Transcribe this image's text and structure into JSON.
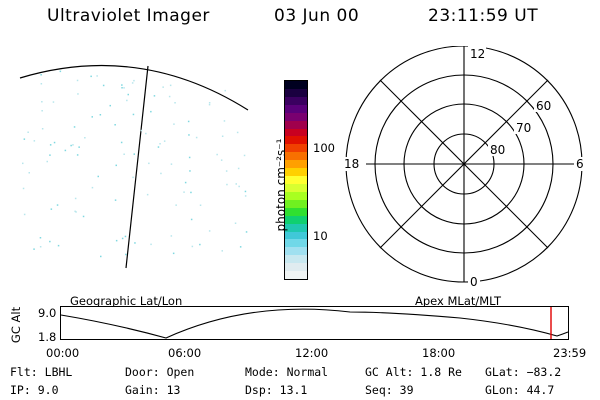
{
  "header": {
    "instrument": "Ultraviolet Imager",
    "date": "03 Jun 00",
    "time": "23:11:59 UT"
  },
  "colorbar": {
    "label": "photon cm⁻²s⁻¹",
    "tick_labels": [
      "100",
      "10"
    ],
    "colors": [
      "#000020",
      "#1a0040",
      "#3a0060",
      "#5a007a",
      "#7a0070",
      "#a0004c",
      "#c80020",
      "#e01000",
      "#f04000",
      "#f87000",
      "#ffa000",
      "#ffd000",
      "#ffff30",
      "#d8ff30",
      "#a8ff20",
      "#70f020",
      "#30e030",
      "#10d070",
      "#20c8b0",
      "#40c8d8",
      "#70d8e8",
      "#a0e0f0",
      "#c8e8f0",
      "#e0ecf0",
      "#f0f4f4"
    ]
  },
  "polar_plot": {
    "mlt_labels": {
      "top": "12",
      "left": "18",
      "right": "6",
      "bottom": "0"
    },
    "lat_labels": [
      "60",
      "70",
      "80"
    ]
  },
  "geo_panel": {
    "title": "Geographic Lat/Lon"
  },
  "altitude_plot": {
    "ylabel": "GC Alt",
    "y_ticks": [
      "9.0",
      "1.8"
    ],
    "left_title": "Geographic Lat/Lon",
    "right_title": "Apex MLat/MLT",
    "x_ticks": [
      "00:00",
      "06:00",
      "12:00",
      "18:00",
      "23:59"
    ],
    "marker_color": "#e00000"
  },
  "params": {
    "row1": [
      {
        "key": "Flt:",
        "value": "LBHL"
      },
      {
        "key": "Door:",
        "value": "Open"
      },
      {
        "key": "Mode:",
        "value": "Normal"
      },
      {
        "key": "GC Alt:",
        "value": "1.8 Re"
      },
      {
        "key": "GLat:",
        "value": "−83.2"
      }
    ],
    "row2": [
      {
        "key": "IP:",
        "value": "9.0"
      },
      {
        "key": "Gain:",
        "value": "13"
      },
      {
        "key": "Dsp:",
        "value": "13.1"
      },
      {
        "key": "Seq:",
        "value": "39"
      },
      {
        "key": "GLon:",
        "value": "44.7"
      }
    ]
  }
}
